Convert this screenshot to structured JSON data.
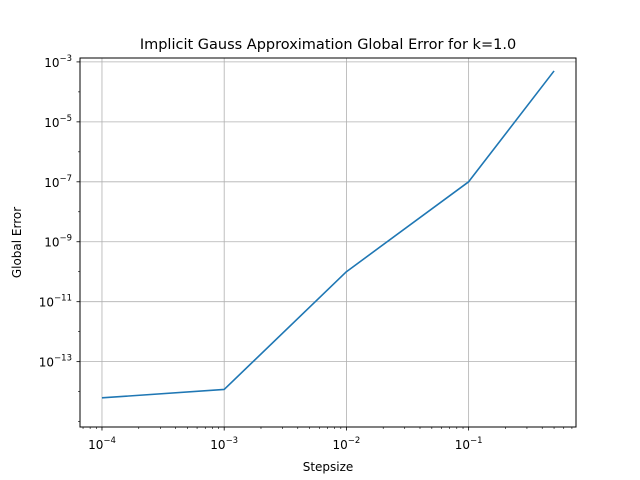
{
  "chart_data": {
    "type": "line",
    "title": "Implicit Gauss Approximation Global Error for k=1.0",
    "xlabel": "Stepsize",
    "ylabel": "Global Error",
    "xscale": "log",
    "yscale": "log",
    "xlim": [
      6.61e-05,
      0.756
    ],
    "ylim": [
      6.6e-16,
      0.00135
    ],
    "grid": true,
    "line_color": "#1f77b4",
    "x_ticks": [
      {
        "value": 0.0001,
        "exp": "-4"
      },
      {
        "value": 0.001,
        "exp": "-3"
      },
      {
        "value": 0.01,
        "exp": "-2"
      },
      {
        "value": 0.1,
        "exp": "-1"
      }
    ],
    "y_ticks": [
      {
        "value": 1e-13,
        "exp": "-13"
      },
      {
        "value": 1e-11,
        "exp": "-11"
      },
      {
        "value": 1e-09,
        "exp": "-9"
      },
      {
        "value": 1e-07,
        "exp": "-7"
      },
      {
        "value": 1e-05,
        "exp": "-5"
      },
      {
        "value": 0.001,
        "exp": "-3"
      }
    ],
    "tick_base": "10",
    "series": [
      {
        "x": [
          0.0001,
          0.001,
          0.01,
          0.1,
          0.5
        ],
        "y": [
          6.2e-15,
          1.18e-14,
          1e-10,
          1e-07,
          0.0005
        ]
      }
    ]
  }
}
